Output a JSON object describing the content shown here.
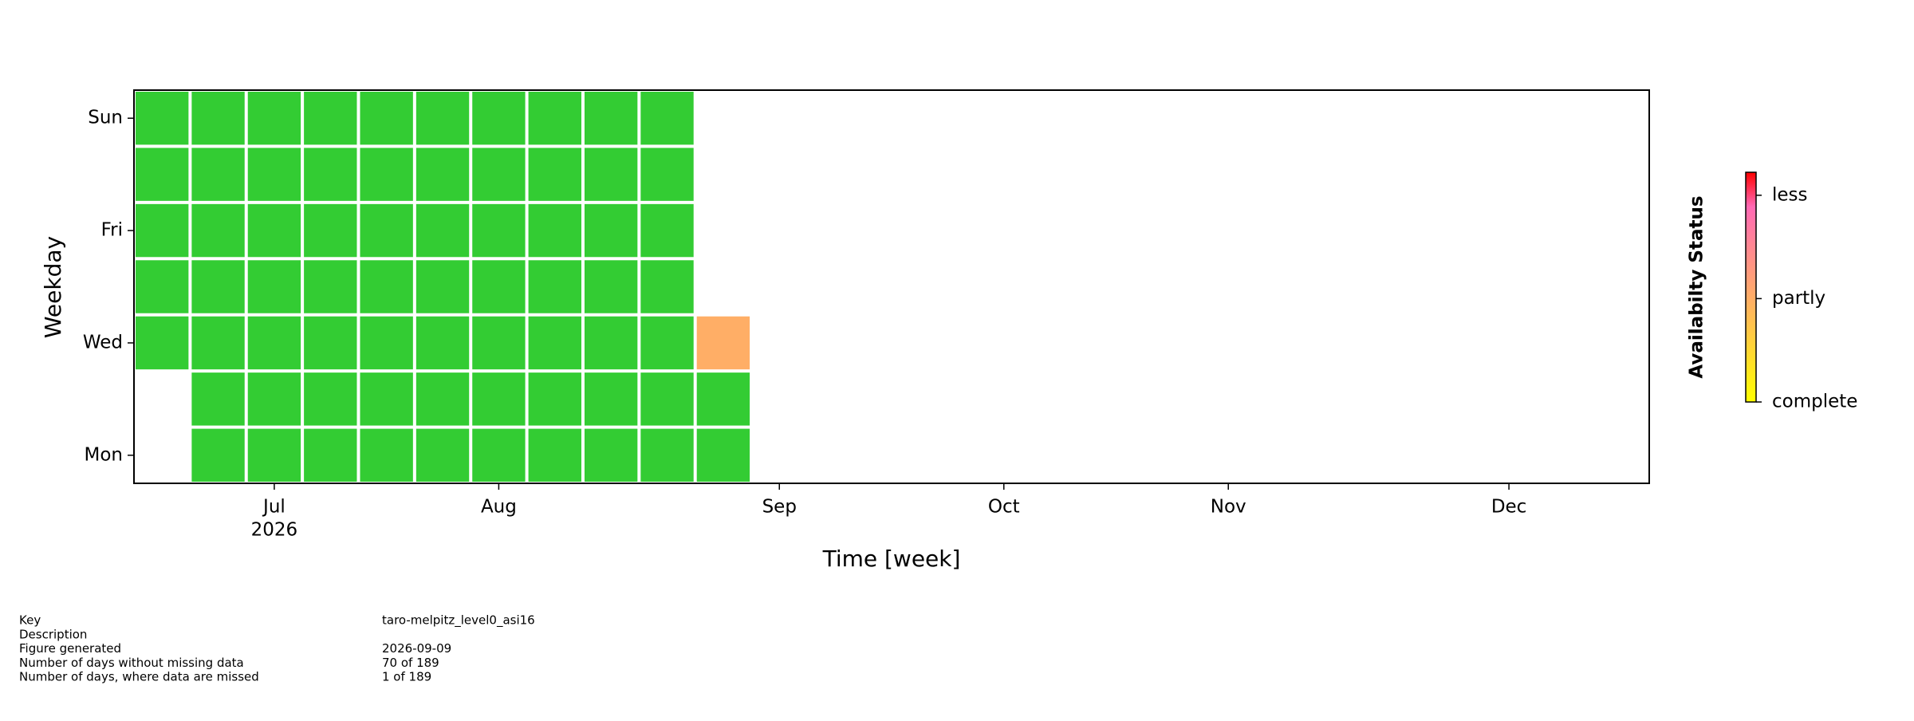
{
  "chart_data": {
    "type": "calendar-heatmap",
    "xlabel": "Time [week]",
    "ylabel": "Weekday",
    "categories": [
      "Mon",
      null,
      "Wed",
      null,
      "Fri",
      null,
      "Sun"
    ],
    "x": [
      0,
      1,
      2,
      3,
      4,
      5,
      6,
      7,
      8,
      9,
      10
    ],
    "z": [
      [
        null,
        0,
        0,
        0,
        0,
        0,
        0,
        0,
        0,
        0,
        0
      ],
      [
        null,
        0,
        0,
        0,
        0,
        0,
        0,
        0,
        0,
        0,
        0
      ],
      [
        0,
        0,
        0,
        0,
        0,
        0,
        0,
        0,
        0,
        0,
        0.45
      ],
      [
        0,
        0,
        0,
        0,
        0,
        0,
        0,
        0,
        0,
        0,
        null
      ],
      [
        0,
        0,
        0,
        0,
        0,
        0,
        0,
        0,
        0,
        0,
        null
      ],
      [
        0,
        0,
        0,
        0,
        0,
        0,
        0,
        0,
        0,
        0,
        null
      ],
      [
        0,
        0,
        0,
        0,
        0,
        0,
        0,
        0,
        0,
        0,
        null
      ]
    ],
    "zero_color": "#33cc33",
    "xlim": [
      -0.5,
      26.5
    ],
    "xticks": [
      {
        "value": 2,
        "label": "Jul"
      },
      {
        "value": 6,
        "label": "Aug"
      },
      {
        "value": 11,
        "label": "Sep"
      },
      {
        "value": 15,
        "label": "Oct"
      },
      {
        "value": 19,
        "label": "Nov"
      },
      {
        "value": 24,
        "label": "Dec"
      }
    ],
    "x_offset_label": "2026",
    "colorbar": {
      "label": "Availabilty Status",
      "lim": [
        0,
        1
      ],
      "colormap": [
        [
          0,
          "#ffff00"
        ],
        [
          0.45,
          "#ffae66"
        ],
        [
          0.85,
          "#ff69b4"
        ],
        [
          1,
          "#ff0000"
        ]
      ],
      "ticks": [
        {
          "value": 0,
          "label": "complete"
        },
        {
          "value": 0.45,
          "label": "partly"
        },
        {
          "value": 0.9,
          "label": "less"
        }
      ]
    }
  },
  "info": [
    {
      "label": "Key",
      "value": "taro-melpitz_level0_asi16"
    },
    {
      "label": "Description"
    },
    {
      "label": "Figure generated",
      "value": "2026-09-09"
    },
    {
      "label": "Number of days without missing data",
      "value": "70 of 189"
    },
    {
      "label": "Number of days, where data are missed",
      "value": "1 of 189"
    }
  ]
}
